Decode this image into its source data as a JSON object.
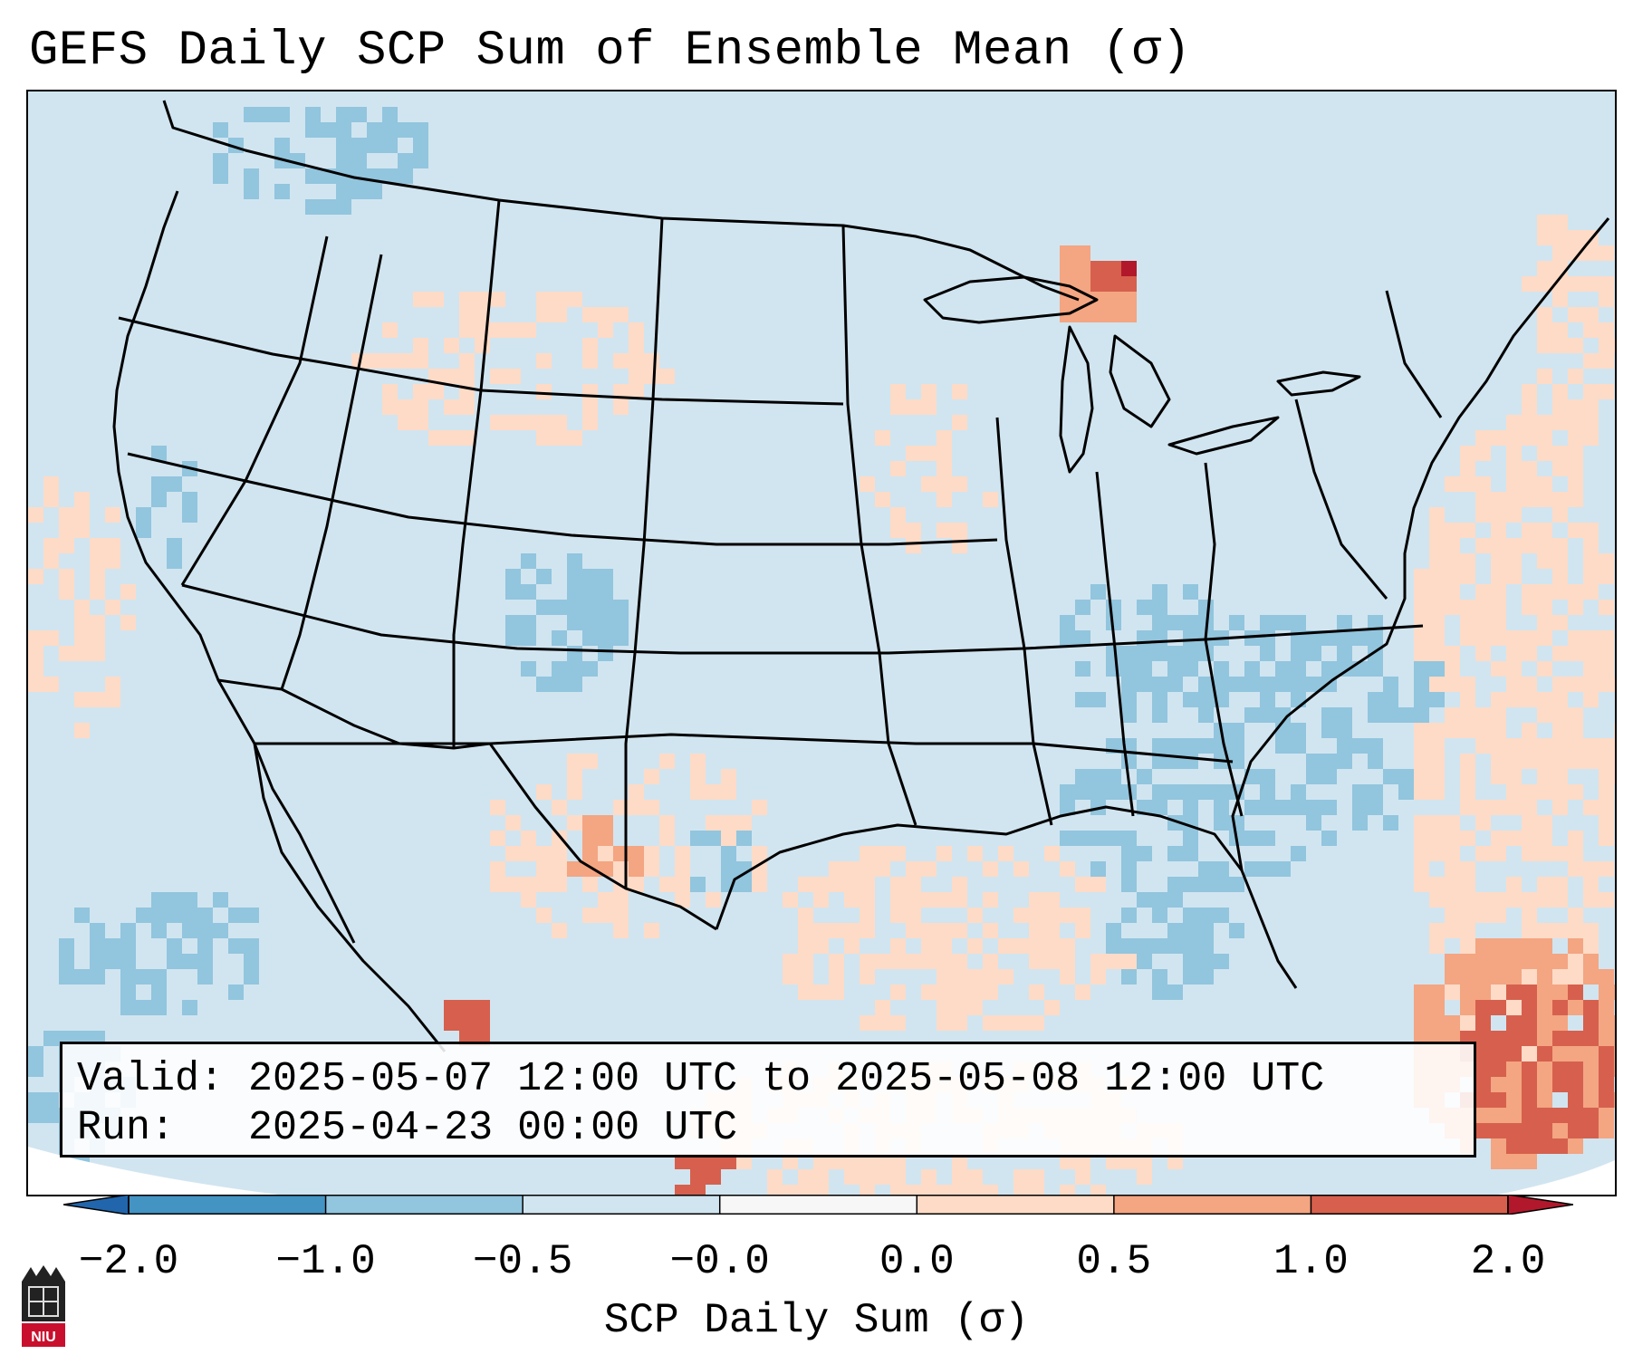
{
  "title": "GEFS Daily SCP Sum of Ensemble Mean (σ)",
  "info": {
    "valid_label": "Valid:",
    "valid_value": "2025-05-07 12:00 UTC to 2025-05-08 12:00 UTC",
    "run_label": "Run:",
    "run_value": "2025-04-23 00:00 UTC"
  },
  "colorbar": {
    "label": "SCP Daily Sum (σ)",
    "ticks": [
      "−2.0",
      "−1.0",
      "−0.5",
      "−0.0",
      "0.0",
      "0.5",
      "1.0",
      "2.0"
    ],
    "bins": [
      {
        "from": -2.0,
        "to": -1.0,
        "color": "#4393c3"
      },
      {
        "from": -1.0,
        "to": -0.5,
        "color": "#92c5de"
      },
      {
        "from": -0.5,
        "to": -0.0,
        "color": "#d1e5f0"
      },
      {
        "from": -0.0,
        "to": 0.0,
        "color": "#f7f7f7"
      },
      {
        "from": 0.0,
        "to": 0.5,
        "color": "#fddbc7"
      },
      {
        "from": 0.5,
        "to": 1.0,
        "color": "#f4a582"
      },
      {
        "from": 1.0,
        "to": 2.0,
        "color": "#d6604d"
      }
    ],
    "under_color": "#2166ac",
    "over_color": "#b2182b"
  },
  "map": {
    "projection": "Lambert conformal, CONUS",
    "background_value_color": "#d1e5f0",
    "boundary_color": "#000000"
  },
  "logo": {
    "text": "NIU",
    "color": "#c8102e"
  }
}
